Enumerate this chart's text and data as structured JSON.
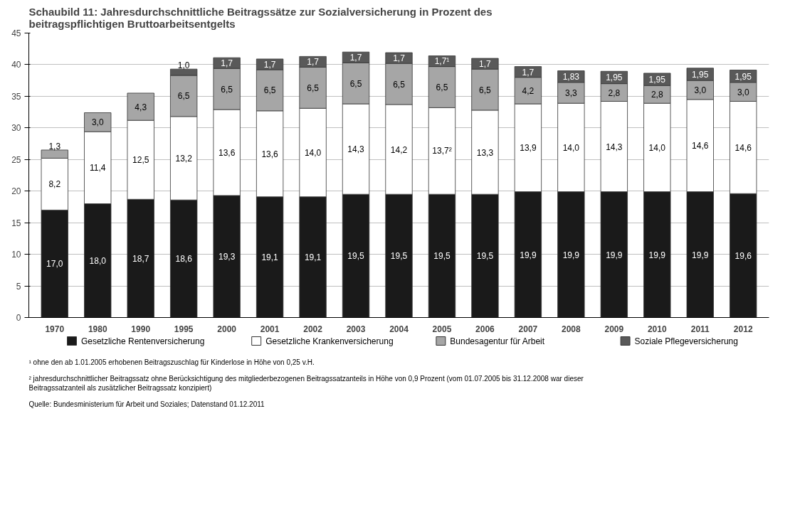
{
  "chart_data": {
    "type": "bar",
    "stacked": true,
    "title": "Schaubild 11: Jahresdurchschnittliche Beitragssätze zur Sozialversicherung in Prozent des\nbeitragspflichtigen Bruttoarbeitsentgelts",
    "categories": [
      "1970",
      "1980",
      "1990",
      "1995",
      "2000",
      "2001",
      "2002",
      "2003",
      "2004",
      "2005",
      "2006",
      "2007",
      "2008",
      "2009",
      "2010",
      "2011",
      "2012"
    ],
    "series": [
      {
        "name": "Gesetzliche Rentenversicherung",
        "color": "#1a1a1a",
        "values": [
          17.0,
          18.0,
          18.7,
          18.6,
          19.3,
          19.1,
          19.1,
          19.5,
          19.5,
          19.5,
          19.5,
          19.9,
          19.9,
          19.9,
          19.9,
          19.9,
          19.6
        ],
        "value_labels": [
          "17,0",
          "18,0",
          "18,7",
          "18,6",
          "19,3",
          "19,1",
          "19,1",
          "19,5",
          "19,5",
          "19,5",
          "19,5",
          "19,9",
          "19,9",
          "19,9",
          "19,9",
          "19,9",
          "19,6"
        ]
      },
      {
        "name": "Gesetzliche Krankenversicherung",
        "color": "#ffffff",
        "values": [
          8.2,
          11.4,
          12.5,
          13.2,
          13.6,
          13.6,
          14.0,
          14.3,
          14.2,
          13.7,
          13.3,
          13.9,
          14.0,
          14.3,
          14.0,
          14.6,
          14.6
        ],
        "value_labels": [
          "8,2",
          "11,4",
          "12,5",
          "13,2",
          "13,6",
          "13,6",
          "14,0",
          "14,3",
          "14,2",
          "13,7²",
          "13,3",
          "13,9",
          "14,0",
          "14,3",
          "14,0",
          "14,6",
          "14,6"
        ]
      },
      {
        "name": "Bundesagentur für Arbeit",
        "color": "#a6a6a6",
        "values": [
          1.3,
          3.0,
          4.3,
          6.5,
          6.5,
          6.5,
          6.5,
          6.5,
          6.5,
          6.5,
          6.5,
          4.2,
          3.3,
          2.8,
          2.8,
          3.0,
          3.0
        ],
        "value_labels": [
          "1,3",
          "3,0",
          "4,3",
          "6,5",
          "6,5",
          "6,5",
          "6,5",
          "6,5",
          "6,5",
          "6,5",
          "6,5",
          "4,2",
          "3,3",
          "2,8",
          "2,8",
          "3,0",
          "3,0"
        ]
      },
      {
        "name": "Soziale Pflegeversicherung",
        "color": "#595959",
        "values": [
          null,
          null,
          null,
          1.0,
          1.7,
          1.7,
          1.7,
          1.7,
          1.7,
          1.7,
          1.7,
          1.7,
          1.83,
          1.95,
          1.95,
          1.95,
          1.95
        ],
        "value_labels": [
          null,
          null,
          null,
          "1,0",
          "1,7",
          "1,7",
          "1,7",
          "1,7",
          "1,7",
          "1,7¹",
          "1,7",
          "1,7",
          "1,83",
          "1,95",
          "1,95",
          "1,95",
          "1,95"
        ]
      }
    ],
    "ylim": [
      0,
      45
    ],
    "yticks": [
      0,
      5,
      10,
      15,
      20,
      25,
      30,
      35,
      40,
      45
    ],
    "grid": "y",
    "legend": "bottom",
    "annotations": [
      "¹ ohne den ab 1.01.2005 erhobenen Beitragszuschlag für Kinderlose in Höhe von 0,25 v.H.",
      "² jahresdurchschnittlicher Beitragssatz ohne Berücksichtigung des mitgliederbezogenen Beitragssatzanteils in Höhe von 0,9 Prozent (vom 01.07.2005 bis 31.12.2008 war dieser\nBeitragssatzanteil als zusätzlicher Beitragssatz konzipiert)",
      "Quelle: Bundesministerium für Arbeit und Soziales; Datenstand 01.12.2011"
    ]
  }
}
